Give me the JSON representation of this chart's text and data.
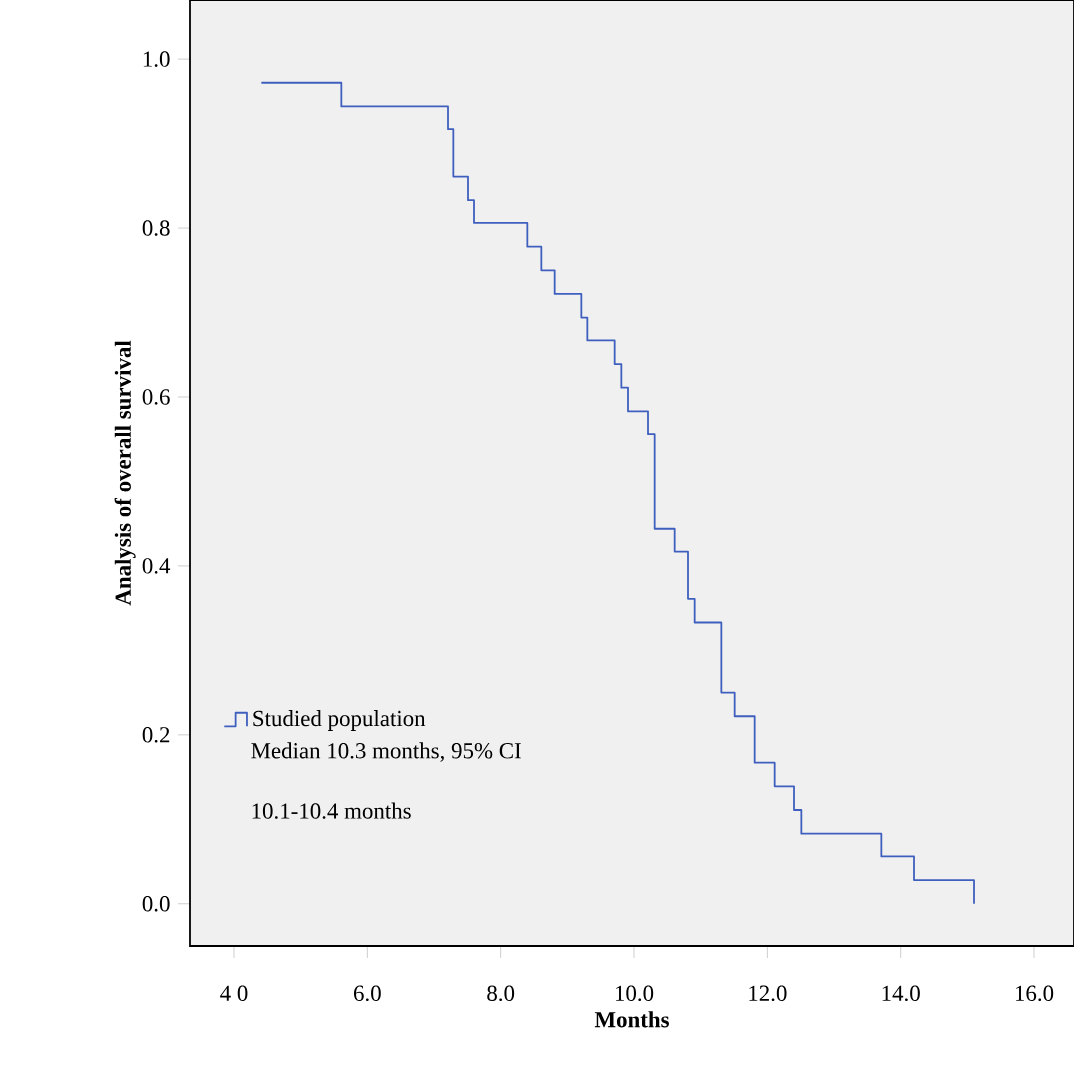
{
  "chart_data": {
    "type": "step",
    "xlabel": "Months",
    "ylabel": "Analysis of overall survival",
    "series": [
      {
        "name": "Studied population",
        "color": "#3f5fbf",
        "x": [
          4.41,
          5.61,
          7.21,
          7.29,
          7.51,
          7.6,
          8.4,
          8.61,
          8.81,
          9.21,
          9.3,
          9.71,
          9.81,
          9.91,
          10.21,
          10.31,
          10.61,
          10.81,
          10.91,
          11.31,
          11.51,
          11.81,
          12.11,
          12.4,
          12.51,
          13.71,
          14.2,
          15.1
        ],
        "values": [
          0.972,
          0.944,
          0.917,
          0.861,
          0.833,
          0.806,
          0.778,
          0.75,
          0.722,
          0.694,
          0.667,
          0.639,
          0.611,
          0.583,
          0.556,
          0.444,
          0.417,
          0.361,
          0.333,
          0.25,
          0.222,
          0.167,
          0.139,
          0.111,
          0.083,
          0.056,
          0.028,
          0.0
        ]
      }
    ],
    "xlim": [
      3.34,
      16.6
    ],
    "ylim": [
      -0.05,
      1.07
    ],
    "xticks": [
      {
        "value": 4,
        "label": "4 0"
      },
      {
        "value": 6,
        "label": "6.0"
      },
      {
        "value": 8,
        "label": "8.0"
      },
      {
        "value": 10,
        "label": "10.0"
      },
      {
        "value": 12,
        "label": "12.0"
      },
      {
        "value": 14,
        "label": "14.0"
      },
      {
        "value": 16,
        "label": "16.0"
      }
    ],
    "yticks": [
      {
        "value": 0,
        "label": "0.0"
      },
      {
        "value": 0.2,
        "label": "0.2"
      },
      {
        "value": 0.4,
        "label": "0.4"
      },
      {
        "value": 0.6,
        "label": "0.6"
      },
      {
        "value": 0.8,
        "label": "0.8"
      },
      {
        "value": 1.0,
        "label": "1.0"
      }
    ],
    "legend": "bottom left",
    "annotations": [
      "Median 10.3 months, 95% CI",
      "10.1-10.4 months"
    ]
  }
}
